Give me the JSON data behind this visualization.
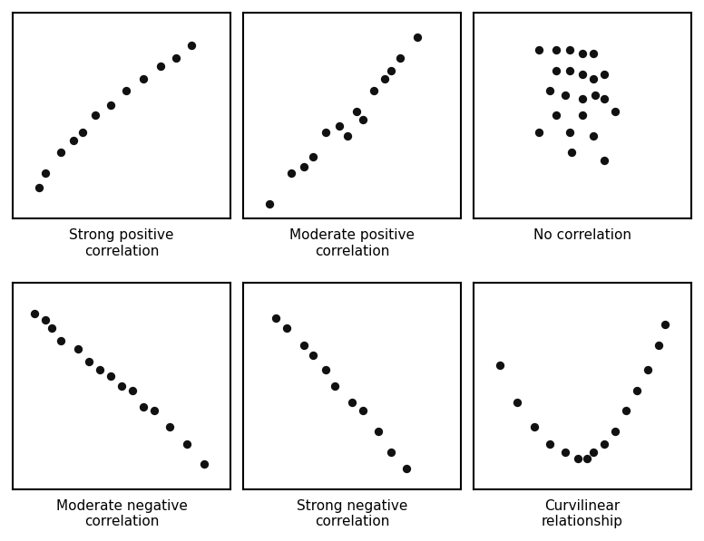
{
  "panels": [
    {
      "label": "Strong positive\ncorrelation",
      "points_x": [
        0.12,
        0.15,
        0.22,
        0.28,
        0.32,
        0.38,
        0.45,
        0.52,
        0.6,
        0.68,
        0.75,
        0.82
      ],
      "points_y": [
        0.15,
        0.22,
        0.32,
        0.38,
        0.42,
        0.5,
        0.55,
        0.62,
        0.68,
        0.74,
        0.78,
        0.84
      ]
    },
    {
      "label": "Moderate positive\ncorrelation",
      "points_x": [
        0.12,
        0.22,
        0.28,
        0.32,
        0.38,
        0.44,
        0.48,
        0.52,
        0.55,
        0.6,
        0.65,
        0.68,
        0.72,
        0.8
      ],
      "points_y": [
        0.07,
        0.22,
        0.25,
        0.3,
        0.42,
        0.45,
        0.4,
        0.52,
        0.48,
        0.62,
        0.68,
        0.72,
        0.78,
        0.88
      ]
    },
    {
      "label": "No correlation",
      "points_x": [
        0.3,
        0.38,
        0.44,
        0.5,
        0.55,
        0.38,
        0.44,
        0.5,
        0.55,
        0.6,
        0.35,
        0.42,
        0.5,
        0.56,
        0.6,
        0.38,
        0.5,
        0.3,
        0.44,
        0.55,
        0.65,
        0.45,
        0.6
      ],
      "points_y": [
        0.82,
        0.82,
        0.82,
        0.8,
        0.8,
        0.72,
        0.72,
        0.7,
        0.68,
        0.7,
        0.62,
        0.6,
        0.58,
        0.6,
        0.58,
        0.5,
        0.5,
        0.42,
        0.42,
        0.4,
        0.52,
        0.32,
        0.28
      ]
    },
    {
      "label": "Moderate negative\ncorrelation",
      "points_x": [
        0.1,
        0.15,
        0.18,
        0.22,
        0.3,
        0.35,
        0.4,
        0.45,
        0.5,
        0.55,
        0.6,
        0.65,
        0.72,
        0.8,
        0.88
      ],
      "points_y": [
        0.85,
        0.82,
        0.78,
        0.72,
        0.68,
        0.62,
        0.58,
        0.55,
        0.5,
        0.48,
        0.4,
        0.38,
        0.3,
        0.22,
        0.12
      ]
    },
    {
      "label": "Strong negative\ncorrelation",
      "points_x": [
        0.15,
        0.2,
        0.28,
        0.32,
        0.38,
        0.42,
        0.5,
        0.55,
        0.62,
        0.68,
        0.75
      ],
      "points_y": [
        0.83,
        0.78,
        0.7,
        0.65,
        0.58,
        0.5,
        0.42,
        0.38,
        0.28,
        0.18,
        0.1
      ]
    },
    {
      "label": "Curvilinear\nrelationship",
      "points_x": [
        0.12,
        0.2,
        0.28,
        0.35,
        0.42,
        0.48,
        0.52,
        0.55,
        0.6,
        0.65,
        0.7,
        0.75,
        0.8,
        0.85,
        0.88
      ],
      "points_y": [
        0.6,
        0.42,
        0.3,
        0.22,
        0.18,
        0.15,
        0.15,
        0.18,
        0.22,
        0.28,
        0.38,
        0.48,
        0.58,
        0.7,
        0.8
      ]
    }
  ],
  "dot_color": "#111111",
  "dot_size": 45,
  "box_color": "#000000",
  "background_color": "#ffffff",
  "label_fontsize": 11,
  "grid_rows": 2,
  "grid_cols": 3,
  "fig_width": 7.76,
  "fig_height": 5.97
}
